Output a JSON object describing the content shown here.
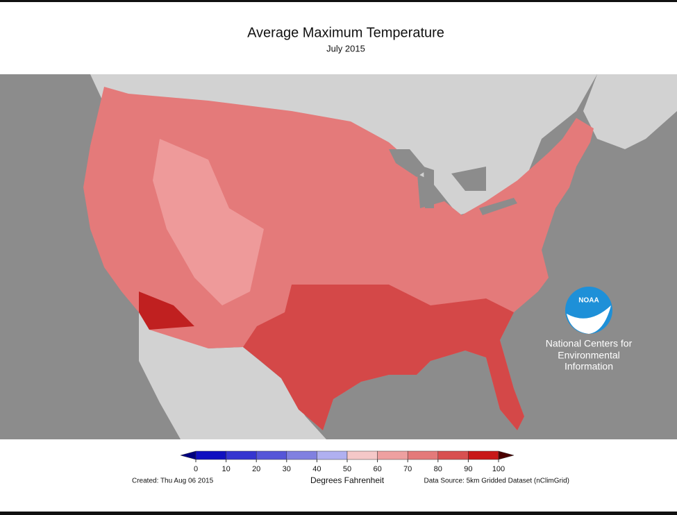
{
  "title": "Average Maximum Temperature",
  "subtitle": "July 2015",
  "colorbar": {
    "ticks": [
      0,
      10,
      20,
      30,
      40,
      50,
      60,
      70,
      80,
      90,
      100
    ],
    "colors": [
      "#1010c0",
      "#3535d0",
      "#5656d8",
      "#8080e0",
      "#b0b0f0",
      "#f5c8c8",
      "#eea0a0",
      "#e47a7a",
      "#d85050",
      "#c81818"
    ],
    "extend_low_color": "#000080",
    "extend_high_color": "#4a0000",
    "label": "Degrees Fahrenheit"
  },
  "footer": {
    "created": "Created: Thu Aug 06 2015",
    "source": "Data Source: 5km Gridded Dataset (nClimGrid)"
  },
  "logo": {
    "badge": "NOAA",
    "lines": [
      "National Centers for",
      "Environmental",
      "Information"
    ]
  }
}
